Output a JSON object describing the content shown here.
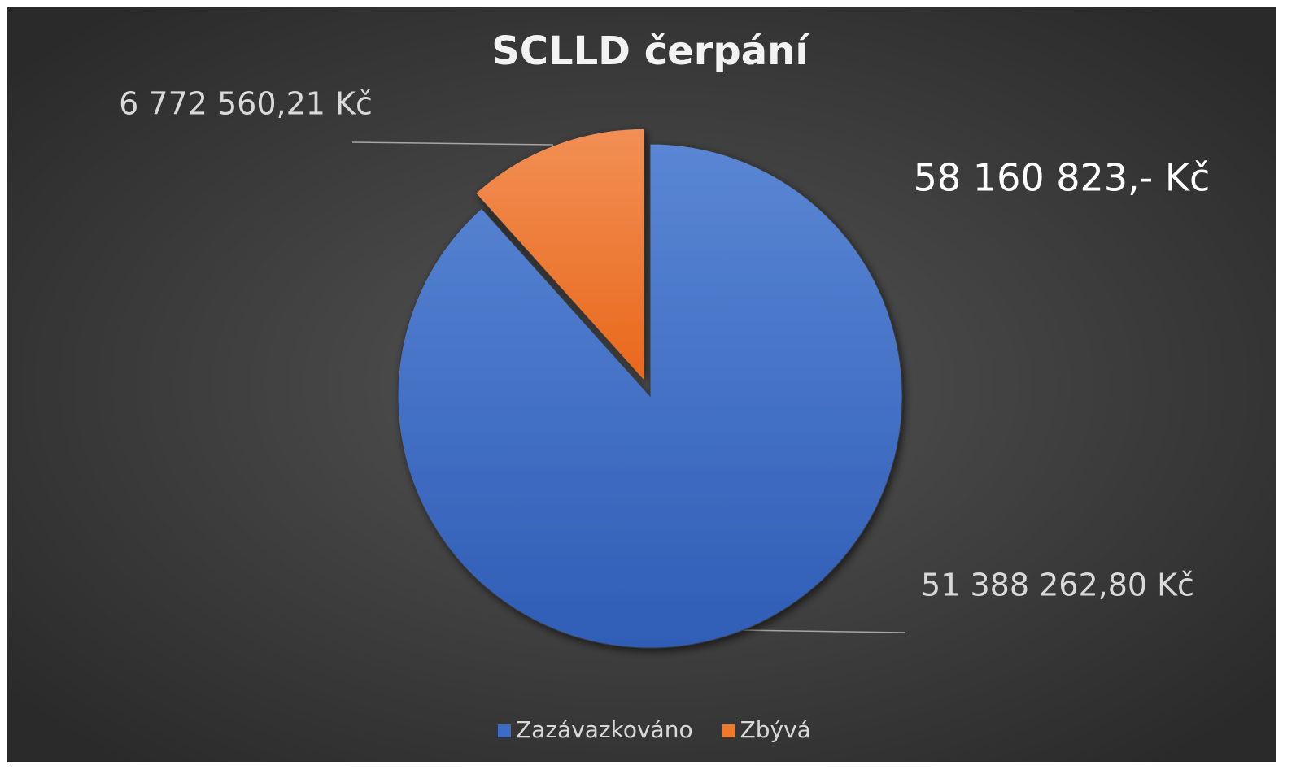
{
  "chart_data": {
    "type": "pie",
    "title": "SCLLD čerpání",
    "categories": [
      "Zazávazkováno",
      "Zbývá"
    ],
    "values": [
      51388262.8,
      6772560.21
    ],
    "value_labels": [
      "51 388 262,80 Kč",
      "6 772 560,21 Kč"
    ],
    "colors": [
      "#3d6cc6",
      "#ee7a2e"
    ],
    "annotation": "58 160 823,- Kč",
    "legend": "bottom"
  }
}
